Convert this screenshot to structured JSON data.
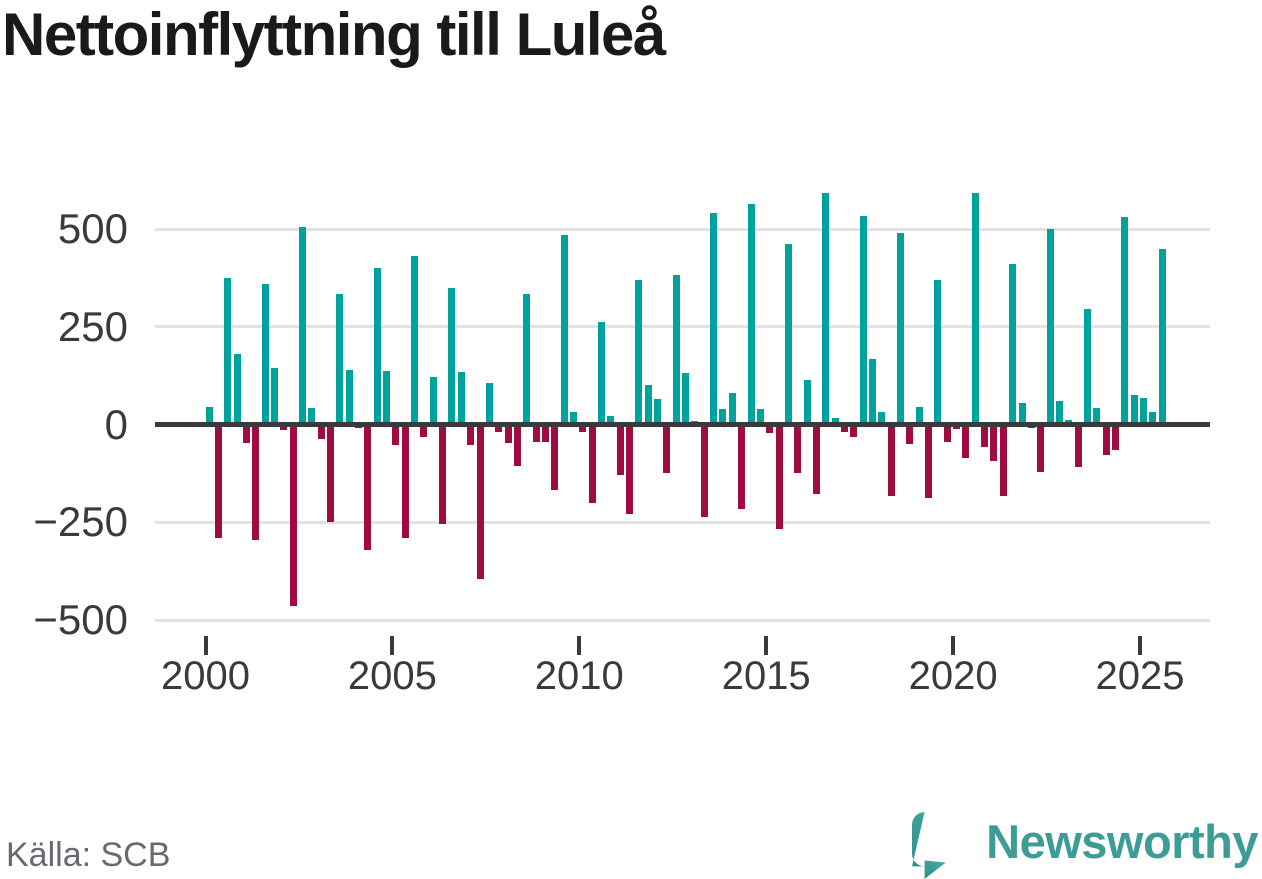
{
  "title": "Nettoinflyttning till Luleå",
  "source": "Källa: SCB",
  "brand": {
    "name": "Newsworthy",
    "icon": "speech-bubble-bar-chart-exclamation",
    "color": "#3d9c95"
  },
  "colors": {
    "positive_bar": "#00a39b",
    "negative_bar": "#9f0c41",
    "title_text": "#1a1a1a",
    "axis_text": "#3a3a3a",
    "gridline": "#e2e2e2",
    "zero_line": "#3a3a3a",
    "source_text": "#696973"
  },
  "chart_data": {
    "type": "bar",
    "title": "Nettoinflyttning till Luleå",
    "frequency": "quarterly",
    "first_period": "2000 Q1",
    "last_period": "2025 Q3",
    "grid": true,
    "legend": "none",
    "y_axis": {
      "tick_values": [
        500,
        250,
        0,
        -250,
        -500
      ],
      "tick_labels": [
        "500",
        "250",
        "0",
        "−250",
        "−500"
      ],
      "range": [
        -500,
        620
      ]
    },
    "x_axis": {
      "tick_years": [
        2000,
        2005,
        2010,
        2015,
        2020,
        2025
      ],
      "tick_labels": [
        "2000",
        "2005",
        "2010",
        "2015",
        "2020",
        "2025"
      ]
    },
    "years": [
      {
        "year": 2000,
        "quarters": [
          45,
          -290,
          375,
          180
        ]
      },
      {
        "year": 2001,
        "quarters": [
          -48,
          -295,
          360,
          145
        ]
      },
      {
        "year": 2002,
        "quarters": [
          -13,
          -465,
          505,
          42
        ]
      },
      {
        "year": 2003,
        "quarters": [
          -36,
          -250,
          335,
          140
        ]
      },
      {
        "year": 2004,
        "quarters": [
          -10,
          -320,
          400,
          136
        ]
      },
      {
        "year": 2005,
        "quarters": [
          -52,
          -290,
          430,
          -33
        ]
      },
      {
        "year": 2006,
        "quarters": [
          121,
          -255,
          350,
          135
        ]
      },
      {
        "year": 2007,
        "quarters": [
          -53,
          -395,
          105,
          -20
        ]
      },
      {
        "year": 2008,
        "quarters": [
          -48,
          -105,
          335,
          -45
        ]
      },
      {
        "year": 2009,
        "quarters": [
          -45,
          -168,
          485,
          33
        ]
      },
      {
        "year": 2010,
        "quarters": [
          -19,
          -200,
          263,
          21
        ]
      },
      {
        "year": 2011,
        "quarters": [
          -130,
          -230,
          370,
          100
        ]
      },
      {
        "year": 2012,
        "quarters": [
          65,
          -125,
          383,
          132
        ]
      },
      {
        "year": 2013,
        "quarters": [
          8,
          -237,
          540,
          39
        ]
      },
      {
        "year": 2014,
        "quarters": [
          81,
          -216,
          563,
          39
        ]
      },
      {
        "year": 2015,
        "quarters": [
          -21,
          -267,
          462,
          -125
        ]
      },
      {
        "year": 2016,
        "quarters": [
          115,
          -178,
          593,
          17
        ]
      },
      {
        "year": 2017,
        "quarters": [
          -19,
          -33,
          533,
          168
        ]
      },
      {
        "year": 2018,
        "quarters": [
          31,
          -184,
          489,
          -51
        ]
      },
      {
        "year": 2019,
        "quarters": [
          44,
          -188,
          370,
          -44
        ]
      },
      {
        "year": 2020,
        "quarters": [
          -12,
          -86,
          593,
          -57
        ]
      },
      {
        "year": 2021,
        "quarters": [
          -93,
          -182,
          410,
          55
        ]
      },
      {
        "year": 2022,
        "quarters": [
          -8,
          -122,
          501,
          60
        ]
      },
      {
        "year": 2023,
        "quarters": [
          11,
          -108,
          295,
          43
        ]
      },
      {
        "year": 2024,
        "quarters": [
          -79,
          -66,
          530,
          75
        ]
      },
      {
        "year": 2025,
        "quarters": [
          68,
          32,
          449
        ]
      }
    ]
  }
}
